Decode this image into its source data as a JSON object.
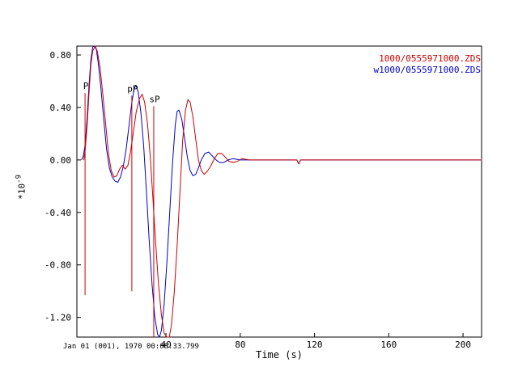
{
  "chart_data": {
    "type": "line",
    "title": "",
    "xlabel": "Time (s)",
    "ylabel_base": "*10",
    "ylabel_exponent": "-9",
    "xlim": [
      -8,
      210
    ],
    "ylim": [
      -1.35,
      0.868
    ],
    "grid": false,
    "legend_position": "top-right",
    "background": "#ffffff",
    "axis_color": "#000000",
    "x_ticks": [
      {
        "v": 40,
        "label": "40"
      },
      {
        "v": 80,
        "label": "80"
      },
      {
        "v": 120,
        "label": "120"
      },
      {
        "v": 160,
        "label": "160"
      },
      {
        "v": 200,
        "label": "200"
      }
    ],
    "y_ticks": [
      {
        "v": 0.8,
        "label": "0.80"
      },
      {
        "v": 0.4,
        "label": "0.40"
      },
      {
        "v": 0.0,
        "label": "0.00"
      },
      {
        "v": -0.4,
        "label": "-0.40"
      },
      {
        "v": -0.8,
        "label": "-0.80"
      },
      {
        "v": -1.2,
        "label": "-1.20"
      }
    ],
    "series": [
      {
        "name": "1000/0555971000.ZDS",
        "color": "#cc0000",
        "points": [
          [
            -4.3,
            0
          ],
          [
            -3.5,
            0.08
          ],
          [
            -2.5,
            0.26
          ],
          [
            -1.5,
            0.5
          ],
          [
            -0.5,
            0.72
          ],
          [
            0.5,
            0.83
          ],
          [
            1.8,
            0.87
          ],
          [
            3,
            0.83
          ],
          [
            4.5,
            0.7
          ],
          [
            6,
            0.5
          ],
          [
            7.5,
            0.27
          ],
          [
            9,
            0.05
          ],
          [
            10.5,
            -0.08
          ],
          [
            12,
            -0.13
          ],
          [
            13.5,
            -0.12
          ],
          [
            15,
            -0.07
          ],
          [
            16.5,
            -0.04
          ],
          [
            18,
            -0.07
          ],
          [
            19.5,
            -0.04
          ],
          [
            21,
            0.07
          ],
          [
            22.5,
            0.22
          ],
          [
            24,
            0.37
          ],
          [
            25.8,
            0.47
          ],
          [
            27.2,
            0.5
          ],
          [
            28.5,
            0.44
          ],
          [
            30,
            0.28
          ],
          [
            31.5,
            0.03
          ],
          [
            33,
            -0.3
          ],
          [
            34.5,
            -0.65
          ],
          [
            36,
            -0.95
          ],
          [
            37.5,
            -1.18
          ],
          [
            39,
            -1.32
          ],
          [
            40.5,
            -1.37
          ],
          [
            41.8,
            -1.36
          ],
          [
            43,
            -1.25
          ],
          [
            44.5,
            -1.0
          ],
          [
            46,
            -0.65
          ],
          [
            47.5,
            -0.25
          ],
          [
            49,
            0.15
          ],
          [
            50.5,
            0.38
          ],
          [
            51.8,
            0.46
          ],
          [
            53,
            0.44
          ],
          [
            54.5,
            0.33
          ],
          [
            56,
            0.16
          ],
          [
            57.5,
            0
          ],
          [
            59,
            -0.08
          ],
          [
            60.5,
            -0.11
          ],
          [
            62,
            -0.09
          ],
          [
            64,
            -0.05
          ],
          [
            66,
            0.01
          ],
          [
            68,
            0.05
          ],
          [
            70,
            0.05
          ],
          [
            72,
            0.02
          ],
          [
            74,
            -0.01
          ],
          [
            76,
            -0.02
          ],
          [
            78.5,
            -0.01
          ],
          [
            81,
            0.01
          ],
          [
            85,
            0
          ],
          [
            95,
            0
          ],
          [
            110.5,
            0
          ],
          [
            111.5,
            -0.03
          ],
          [
            112.5,
            0
          ],
          [
            130,
            0
          ],
          [
            170,
            0
          ],
          [
            209.5,
            0
          ]
        ]
      },
      {
        "name": "w1000/0555971000.ZDS",
        "color": "#0000cc",
        "points": [
          [
            -5.5,
            0
          ],
          [
            -4.5,
            0.03
          ],
          [
            -3.5,
            0.12
          ],
          [
            -2.5,
            0.32
          ],
          [
            -1.5,
            0.56
          ],
          [
            -0.5,
            0.76
          ],
          [
            0.5,
            0.86
          ],
          [
            1.5,
            0.88
          ],
          [
            2.5,
            0.84
          ],
          [
            3.5,
            0.74
          ],
          [
            5,
            0.54
          ],
          [
            6.5,
            0.3
          ],
          [
            8,
            0.08
          ],
          [
            9.5,
            -0.06
          ],
          [
            11,
            -0.13
          ],
          [
            12.5,
            -0.16
          ],
          [
            14,
            -0.17
          ],
          [
            15.5,
            -0.13
          ],
          [
            17,
            -0.05
          ],
          [
            18.5,
            0.08
          ],
          [
            20,
            0.25
          ],
          [
            21.5,
            0.43
          ],
          [
            22.8,
            0.54
          ],
          [
            23.8,
            0.57
          ],
          [
            25,
            0.52
          ],
          [
            26.5,
            0.36
          ],
          [
            28,
            0.1
          ],
          [
            29.5,
            -0.25
          ],
          [
            31,
            -0.62
          ],
          [
            32.5,
            -0.95
          ],
          [
            34,
            -1.2
          ],
          [
            35.5,
            -1.33
          ],
          [
            36.5,
            -1.35
          ],
          [
            37.5,
            -1.3
          ],
          [
            39,
            -1.1
          ],
          [
            40.5,
            -0.78
          ],
          [
            42,
            -0.4
          ],
          [
            43.5,
            -0.03
          ],
          [
            45,
            0.27
          ],
          [
            46,
            0.37
          ],
          [
            47,
            0.38
          ],
          [
            48.5,
            0.31
          ],
          [
            50,
            0.17
          ],
          [
            51.5,
            0.02
          ],
          [
            53,
            -0.08
          ],
          [
            54.5,
            -0.12
          ],
          [
            56,
            -0.11
          ],
          [
            57.5,
            -0.06
          ],
          [
            59,
            0
          ],
          [
            61,
            0.05
          ],
          [
            63,
            0.06
          ],
          [
            65,
            0.03
          ],
          [
            67,
            0
          ],
          [
            69,
            -0.02
          ],
          [
            71,
            -0.02
          ],
          [
            73.5,
            0
          ],
          [
            76,
            0.01
          ],
          [
            80,
            0
          ],
          [
            90,
            0
          ],
          [
            105,
            0
          ],
          [
            110.5,
            0
          ],
          [
            111.5,
            -0.03
          ],
          [
            112.5,
            0
          ],
          [
            130,
            0
          ],
          [
            170,
            0
          ],
          [
            209.5,
            0
          ]
        ]
      }
    ],
    "phase_markers": [
      {
        "label": "P",
        "t": -3.6,
        "v_top": 0.51,
        "v_bottom": -1.03
      },
      {
        "label": "pP",
        "t": 21.6,
        "v_top": 0.49,
        "v_bottom": -1.0
      },
      {
        "label": "sP",
        "t": 33.4,
        "v_top": 0.41,
        "v_bottom": -1.37
      }
    ],
    "timestamp": "Jan 01 (001), 1970 00:08:33.799"
  }
}
